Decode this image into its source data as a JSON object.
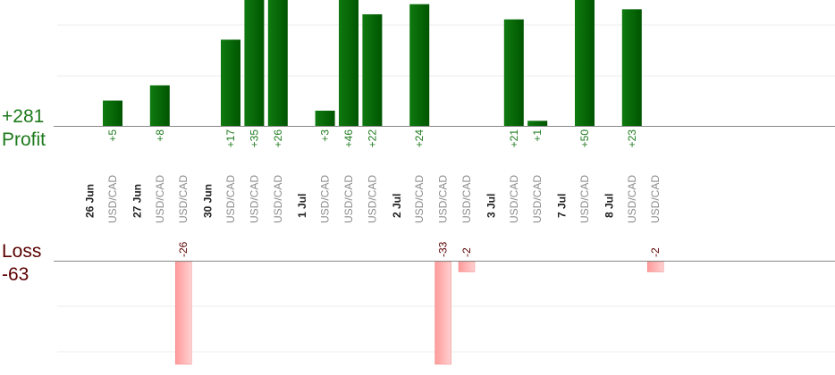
{
  "summary": {
    "profit_total": "+281",
    "profit_label": "Profit",
    "loss_label": "Loss",
    "loss_total": "-63"
  },
  "colors": {
    "profit_bar_dark": "#005500",
    "profit_bar_light": "#0f7a0f",
    "profit_text": "#1d7a1d",
    "loss_bar_dark": "#ff9a9a",
    "loss_bar_light": "#ffd0d0",
    "loss_text": "#5a0000",
    "date_text": "#222222",
    "pair_text": "#8c8c8c",
    "axis": "#888888",
    "grid": "#eeeeee"
  },
  "chart_data": {
    "type": "bar",
    "title": "",
    "xlabel": "",
    "ylabel": "",
    "grid": true,
    "date_groups": [
      {
        "date": "26 Jun",
        "trades": [
          {
            "pair": "USD/CAD",
            "profit": 5
          }
        ]
      },
      {
        "date": "27 Jun",
        "trades": [
          {
            "pair": "USD/CAD",
            "profit": 8
          },
          {
            "pair": "USD/CAD",
            "loss": -26
          }
        ]
      },
      {
        "date": "30 Jun",
        "trades": [
          {
            "pair": "USD/CAD",
            "profit": 17
          },
          {
            "pair": "USD/CAD",
            "profit": 35
          },
          {
            "pair": "USD/CAD",
            "profit": 26
          }
        ]
      },
      {
        "date": "1 Jul",
        "trades": [
          {
            "pair": "USD/CAD",
            "profit": 3
          },
          {
            "pair": "USD/CAD",
            "profit": 46
          },
          {
            "pair": "USD/CAD",
            "profit": 22
          }
        ]
      },
      {
        "date": "2 Jul",
        "trades": [
          {
            "pair": "USD/CAD",
            "profit": 24
          },
          {
            "pair": "USD/CAD",
            "loss": -33
          },
          {
            "pair": "USD/CAD",
            "loss": -2
          }
        ]
      },
      {
        "date": "3 Jul",
        "trades": [
          {
            "pair": "USD/CAD",
            "profit": 21
          },
          {
            "pair": "USD/CAD",
            "profit": 1
          }
        ]
      },
      {
        "date": "7 Jul",
        "trades": [
          {
            "pair": "USD/CAD",
            "profit": 50
          }
        ]
      },
      {
        "date": "8 Jul",
        "trades": [
          {
            "pair": "USD/CAD",
            "profit": 23
          },
          {
            "pair": "USD/CAD",
            "loss": -2
          }
        ]
      }
    ],
    "profit_ylim": [
      0,
      25
    ],
    "loss_ylim": [
      0,
      20
    ]
  }
}
